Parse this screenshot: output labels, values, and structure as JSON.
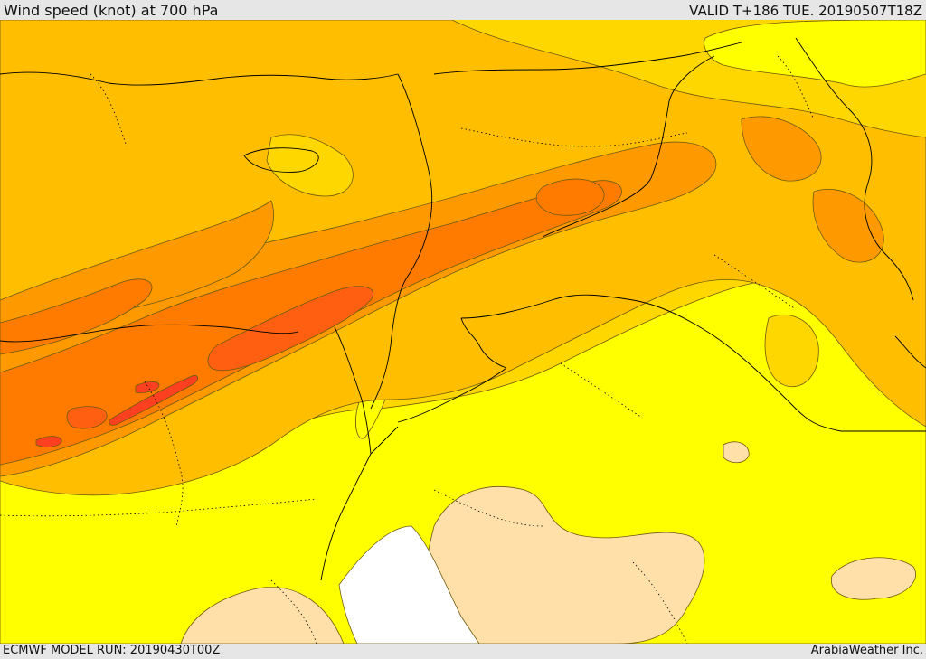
{
  "header": {
    "title": "Wind speed (knot) at 700 hPa",
    "valid_time": "VALID T+186 TUE. 20190507T18Z"
  },
  "footer": {
    "model_run": "ECMWF MODEL RUN: 20190430T00Z",
    "credit": "ArabiaWeather Inc."
  },
  "map": {
    "variable": "wind speed",
    "level_hPa": 700,
    "unit": "knot",
    "colors": {
      "very_low": "#ffffff",
      "low": "#ffe0a8",
      "light": "#ffff00",
      "medium": "#ffd700",
      "moderate": "#ffbf00",
      "strong": "#ff9900",
      "very_strong": "#ff7b00",
      "max": "#ff5f10",
      "jet_core": "#ff4020",
      "boundary_line": "#000000",
      "contour_line": "#6e5a10"
    }
  }
}
